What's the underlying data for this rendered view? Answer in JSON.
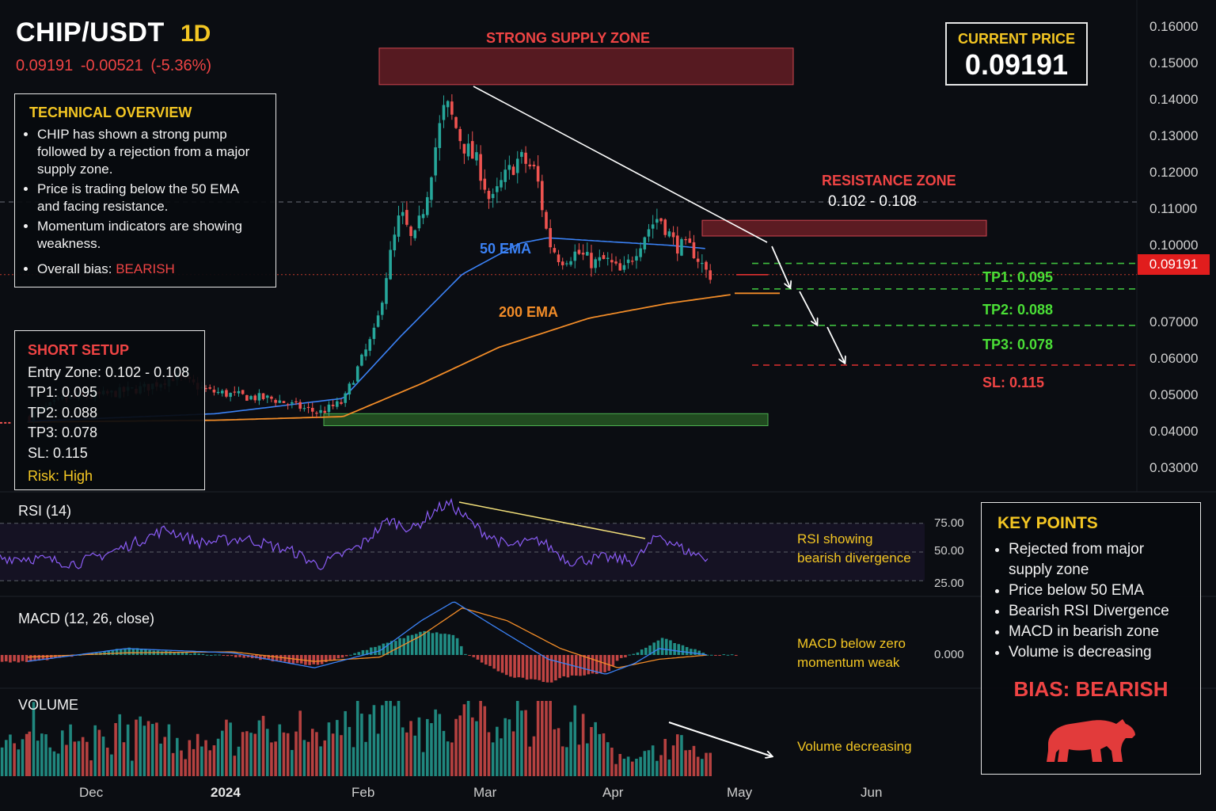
{
  "header": {
    "pair": "CHIP/USDT",
    "timeframe": "1D",
    "change_line": "0.09191  -0.00521 (-5.36%)"
  },
  "overview": {
    "title": "TECHNICAL OVERVIEW",
    "bullets": [
      "CHIP has shown a strong pump followed by a rejection from a major supply zone.",
      "Price is trading below the 50 EMA and facing resistance.",
      "Momentum indicators are showing weakness."
    ],
    "bias_prefix": "Overall bias: ",
    "bias_value": "BEARISH"
  },
  "setup": {
    "title": "SHORT SETUP",
    "lines": [
      "Entry Zone: 0.102 - 0.108",
      "TP1: 0.095",
      "TP2: 0.088",
      "TP3: 0.078",
      "SL: 0.115"
    ],
    "risk": "Risk: High"
  },
  "current_price": {
    "label": "CURRENT PRICE",
    "value": "0.09191",
    "tag": "0.09191"
  },
  "annotations": {
    "supply_zone": "STRONG SUPPLY ZONE",
    "resistance_zone": "RESISTANCE ZONE",
    "resistance_range": "0.102 - 0.108",
    "ema50": "50 EMA",
    "ema200": "200 EMA",
    "tp1": "TP1: 0.095",
    "tp2": "TP2: 0.088",
    "tp3": "TP3: 0.078",
    "sl": "SL:  0.115"
  },
  "indicators": {
    "rsi_label": "RSI (14)",
    "rsi_ticks": [
      "75.00",
      "50.00",
      "25.00"
    ],
    "rsi_note": [
      "RSI showing",
      "bearish divergence"
    ],
    "macd_label": "MACD (12, 26, close)",
    "macd_tick": "0.000",
    "macd_note": [
      "MACD below zero",
      "momentum weak"
    ],
    "volume_label": "VOLUME",
    "volume_note": "Volume decreasing"
  },
  "key_points": {
    "title": "KEY POINTS",
    "items": [
      "Rejected from major supply zone",
      "Price below 50 EMA",
      "Bearish RSI Divergence",
      "MACD in bearish zone",
      "Volume is decreasing"
    ],
    "bias": "BIAS: BEARISH",
    "bear_icon": "bear-icon",
    "bear_color": "#e23b3b"
  },
  "colors": {
    "up": "#26a69a",
    "down": "#ef5350",
    "ema50": "#3b82f6",
    "ema200": "#f28c28",
    "accent": "#f3c623",
    "rsi": "#8b5cf6"
  },
  "chart_data": {
    "type": "candlestick",
    "symbol": "CHIP/USDT",
    "interval": "1D",
    "y_ticks": [
      "0.16000",
      "0.15000",
      "0.14000",
      "0.13000",
      "0.12000",
      "0.11000",
      "0.10000",
      "0.07000",
      "0.06000",
      "0.05000",
      "0.04000",
      "0.03000"
    ],
    "x_ticks": [
      "Dec",
      "2024",
      "Feb",
      "Mar",
      "Apr",
      "May",
      "Jun"
    ],
    "ylim": [
      0.025,
      0.165
    ],
    "price_path": [
      [
        "2023-11-16",
        0.0528
      ],
      [
        "2023-11-25",
        0.0578
      ],
      [
        "2023-12-05",
        0.059
      ],
      [
        "2023-12-15",
        0.061
      ],
      [
        "2023-12-22",
        0.064
      ],
      [
        "2023-12-30",
        0.06
      ],
      [
        "2024-01-08",
        0.0585
      ],
      [
        "2024-01-15",
        0.0578
      ],
      [
        "2024-01-23",
        0.055
      ],
      [
        "2024-01-26",
        0.054
      ],
      [
        "2024-02-01",
        0.057
      ],
      [
        "2024-02-04",
        0.065
      ],
      [
        "2024-02-09",
        0.077
      ],
      [
        "2024-02-12",
        0.095
      ],
      [
        "2024-02-15",
        0.109
      ],
      [
        "2024-02-18",
        0.1
      ],
      [
        "2024-02-21",
        0.112
      ],
      [
        "2024-02-24",
        0.13
      ],
      [
        "2024-02-26",
        0.139
      ],
      [
        "2024-03-01",
        0.128
      ],
      [
        "2024-03-05",
        0.122
      ],
      [
        "2024-03-08",
        0.111
      ],
      [
        "2024-03-11",
        0.118
      ],
      [
        "2024-03-15",
        0.124
      ],
      [
        "2024-03-19",
        0.12
      ],
      [
        "2024-03-22",
        0.101
      ],
      [
        "2024-03-25",
        0.096
      ],
      [
        "2024-03-29",
        0.098
      ],
      [
        "2024-04-02",
        0.095
      ],
      [
        "2024-04-05",
        0.096
      ],
      [
        "2024-04-09",
        0.092
      ],
      [
        "2024-04-12",
        0.098
      ],
      [
        "2024-04-15",
        0.104
      ],
      [
        "2024-04-18",
        0.108
      ],
      [
        "2024-04-22",
        0.1
      ],
      [
        "2024-04-26",
        0.099
      ],
      [
        "2024-04-30",
        0.0919
      ]
    ],
    "ema50_path": [
      [
        "2023-11-16",
        0.0517
      ],
      [
        "2024-01-01",
        0.0538
      ],
      [
        "2024-02-01",
        0.058
      ],
      [
        "2024-02-15",
        0.075
      ],
      [
        "2024-03-01",
        0.092
      ],
      [
        "2024-03-15",
        0.1005
      ],
      [
        "2024-03-22",
        0.102
      ],
      [
        "2024-04-05",
        0.101
      ],
      [
        "2024-04-20",
        0.1
      ],
      [
        "2024-04-30",
        0.099
      ]
    ],
    "ema200_path": [
      [
        "2023-11-16",
        0.0515
      ],
      [
        "2024-01-01",
        0.052
      ],
      [
        "2024-02-01",
        0.053
      ],
      [
        "2024-02-20",
        0.062
      ],
      [
        "2024-03-10",
        0.072
      ],
      [
        "2024-04-01",
        0.08
      ],
      [
        "2024-04-20",
        0.084
      ],
      [
        "2024-05-06",
        0.0865
      ]
    ],
    "levels": {
      "supply_zone": [
        0.144,
        0.154
      ],
      "resistance_zone": [
        0.1025,
        0.1068
      ],
      "tp1": 0.095,
      "tp2": 0.088,
      "tp3": 0.078,
      "sl": 0.115,
      "support_zone": [
        0.0505,
        0.0538
      ]
    },
    "rsi": {
      "ylim": [
        0,
        100
      ],
      "levels": [
        75,
        50,
        25
      ],
      "path": [
        [
          "2023-11-16",
          45
        ],
        [
          "2023-11-28",
          40
        ],
        [
          "2023-12-08",
          52
        ],
        [
          "2023-12-20",
          70
        ],
        [
          "2023-12-28",
          58
        ],
        [
          "2024-01-08",
          62
        ],
        [
          "2024-01-20",
          50
        ],
        [
          "2024-01-26",
          38
        ],
        [
          "2024-02-05",
          55
        ],
        [
          "2024-02-12",
          78
        ],
        [
          "2024-02-18",
          70
        ],
        [
          "2024-02-24",
          88
        ],
        [
          "2024-02-27",
          92
        ],
        [
          "2024-03-05",
          70
        ],
        [
          "2024-03-12",
          55
        ],
        [
          "2024-03-20",
          60
        ],
        [
          "2024-03-27",
          42
        ],
        [
          "2024-04-05",
          45
        ],
        [
          "2024-04-12",
          42
        ],
        [
          "2024-04-18",
          65
        ],
        [
          "2024-04-25",
          50
        ],
        [
          "2024-04-30",
          45
        ]
      ]
    },
    "macd": {
      "macd_line": [
        [
          "2023-11-16",
          -0.3
        ],
        [
          "2023-12-10",
          0.3
        ],
        [
          "2024-01-05",
          0.1
        ],
        [
          "2024-01-25",
          -0.6
        ],
        [
          "2024-02-10",
          0.2
        ],
        [
          "2024-02-20",
          1.6
        ],
        [
          "2024-02-28",
          2.5
        ],
        [
          "2024-03-10",
          1.2
        ],
        [
          "2024-03-22",
          -0.2
        ],
        [
          "2024-04-05",
          -0.9
        ],
        [
          "2024-04-12",
          -0.4
        ],
        [
          "2024-04-18",
          0.3
        ],
        [
          "2024-04-30",
          0.0
        ]
      ],
      "signal_line": [
        [
          "2023-11-16",
          -0.1
        ],
        [
          "2023-12-10",
          0.1
        ],
        [
          "2024-01-05",
          0.15
        ],
        [
          "2024-01-25",
          -0.3
        ],
        [
          "2024-02-10",
          -0.1
        ],
        [
          "2024-02-20",
          0.9
        ],
        [
          "2024-03-01",
          2.2
        ],
        [
          "2024-03-12",
          1.6
        ],
        [
          "2024-03-25",
          0.3
        ],
        [
          "2024-04-08",
          -0.6
        ],
        [
          "2024-04-18",
          -0.2
        ],
        [
          "2024-04-30",
          0.0
        ]
      ]
    },
    "volume_trend": "decreasing"
  }
}
